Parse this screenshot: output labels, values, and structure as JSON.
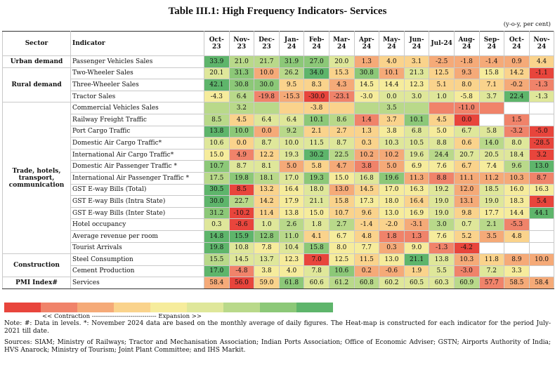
{
  "header": {
    "title": "Table III.1: High Frequency Indicators- Services",
    "unit": "(y-o-y, per cent)"
  },
  "table": {
    "sector_head": "Sector",
    "indicator_head": "Indicator",
    "months": [
      "Oct-23",
      "Nov-23",
      "Dec-23",
      "Jan-24",
      "Feb-24",
      "Mar-24",
      "Apr-24",
      "May-24",
      "Jun-24",
      "Jul-24",
      "Aug-24",
      "Sep-24",
      "Oct-24",
      "Nov-24"
    ],
    "sections": [
      {
        "sector": "Urban demand",
        "rows": [
          {
            "indicator": "Passenger Vehicles Sales",
            "values": [
              "33.9",
              "21.0",
              "21.7",
              "31.9",
              "27.0",
              "20.0",
              "1.3",
              "4.0",
              "3.1",
              "-2.5",
              "-1.8",
              "-1.4",
              "0.9",
              "4.4"
            ]
          }
        ]
      },
      {
        "sector": "Rural demand",
        "rows": [
          {
            "indicator": "Two-Wheeler Sales",
            "values": [
              "20.1",
              "31.3",
              "10.0",
              "26.2",
              "34.0",
              "15.3",
              "30.8",
              "10.1",
              "21.3",
              "12.5",
              "9.3",
              "15.8",
              "14.2",
              "-1.1"
            ]
          },
          {
            "indicator": "Three-Wheeler Sales",
            "values": [
              "42.1",
              "30.8",
              "30.0",
              "9.5",
              "8.3",
              "4.3",
              "14.5",
              "14.4",
              "12.3",
              "5.1",
              "8.0",
              "7.1",
              "-0.2",
              "-1.3"
            ]
          },
          {
            "indicator": "Tractor Sales",
            "values": [
              "-4.3",
              "6.4",
              "-19.8",
              "-15.3",
              "-30.0",
              "-23.1",
              "-3.0",
              "0.0",
              "3.0",
              "1.0",
              "-5.8",
              "3.7",
              "22.4",
              "-1.3"
            ]
          }
        ]
      },
      {
        "sector": "Trade, hotels, transport, communication",
        "rows": [
          {
            "indicator": "Commercial Vehicles Sales",
            "values": [
              null,
              "3.2",
              null,
              null,
              "-3.8",
              null,
              null,
              "3.5",
              null,
              null,
              "-11.0",
              null,
              null,
              null
            ]
          },
          {
            "indicator": "Railway Freight Traffic",
            "values": [
              "8.5",
              "4.5",
              "6.4",
              "6.4",
              "10.1",
              "8.6",
              "1.4",
              "3.7",
              "10.1",
              "4.5",
              "0.0",
              null,
              "1.5",
              null
            ]
          },
          {
            "indicator": "Port Cargo Traffic",
            "values": [
              "13.8",
              "10.0",
              "0.0",
              "9.2",
              "2.1",
              "2.7",
              "1.3",
              "3.8",
              "6.8",
              "5.0",
              "6.7",
              "5.8",
              "-3.2",
              "-5.0"
            ]
          },
          {
            "indicator": "Domestic Air Cargo Traffic*",
            "values": [
              "10.6",
              "0.0",
              "8.7",
              "10.0",
              "11.5",
              "8.7",
              "0.3",
              "10.3",
              "10.5",
              "8.8",
              "0.6",
              "14.0",
              "8.0",
              "-28.5"
            ]
          },
          {
            "indicator": "International Air Cargo Traffic*",
            "values": [
              "15.0",
              "4.9",
              "12.2",
              "19.3",
              "30.2",
              "22.5",
              "10.2",
              "10.2",
              "19.6",
              "24.4",
              "20.7",
              "20.5",
              "18.4",
              "3.2"
            ]
          },
          {
            "indicator": "Domestic Air Passenger Traffic *",
            "values": [
              "10.7",
              "8.7",
              "8.1",
              "5.0",
              "5.8",
              "4.7",
              "3.8",
              "5.0",
              "6.9",
              "7.6",
              "6.7",
              "7.4",
              "9.6",
              "13.0"
            ]
          },
          {
            "indicator": "International Air Passenger Traffic *",
            "values": [
              "17.5",
              "19.8",
              "18.1",
              "17.0",
              "19.3",
              "15.0",
              "16.8",
              "19.6",
              "11.3",
              "8.8",
              "11.1",
              "11.2",
              "10.3",
              "8.7"
            ]
          },
          {
            "indicator": "GST E-way Bills (Total)",
            "values": [
              "30.5",
              "8.5",
              "13.2",
              "16.4",
              "18.0",
              "13.0",
              "14.5",
              "17.0",
              "16.3",
              "19.2",
              "12.0",
              "18.5",
              "16.0",
              "16.3"
            ]
          },
          {
            "indicator": "GST E-way Bills (Intra State)",
            "values": [
              "30.0",
              "22.7",
              "14.2",
              "17.9",
              "21.1",
              "15.8",
              "17.3",
              "18.0",
              "16.4",
              "19.0",
              "13.1",
              "19.0",
              "18.3",
              "5.4"
            ]
          },
          {
            "indicator": "GST E-way Bills (Inter State)",
            "values": [
              "31.2",
              "-10.2",
              "11.4",
              "13.8",
              "15.0",
              "10.7",
              "9.6",
              "13.0",
              "16.9",
              "19.0",
              "9.8",
              "17.7",
              "14.4",
              "44.1"
            ]
          },
          {
            "indicator": "Hotel occupancy",
            "values": [
              "0.3",
              "-8.6",
              "1.0",
              "2.6",
              "1.8",
              "2.7",
              "-1.4",
              "-2.0",
              "-3.1",
              "3.0",
              "0.7",
              "2.1",
              "-5.3",
              null
            ]
          },
          {
            "indicator": "Average revenue per room",
            "values": [
              "14.8",
              "15.9",
              "12.8",
              "11.0",
              "4.1",
              "6.7",
              "4.8",
              "1.8",
              "1.3",
              "7.6",
              "5.2",
              "3.5",
              "4.8",
              null
            ]
          },
          {
            "indicator": "Tourist Arrivals",
            "values": [
              "19.8",
              "10.8",
              "7.8",
              "10.4",
              "15.8",
              "8.0",
              "7.7",
              "0.3",
              "9.0",
              "-1.3",
              "-4.2",
              null,
              null,
              null
            ]
          }
        ]
      },
      {
        "sector": "Construction",
        "rows": [
          {
            "indicator": "Steel Consumption",
            "values": [
              "15.5",
              "14.5",
              "13.7",
              "12.3",
              "7.0",
              "12.5",
              "11.5",
              "13.0",
              "21.1",
              "13.8",
              "10.3",
              "11.8",
              "8.9",
              "10.0"
            ]
          },
          {
            "indicator": "Cement Production",
            "values": [
              "17.0",
              "-4.8",
              "3.8",
              "4.0",
              "7.8",
              "10.6",
              "0.2",
              "-0.6",
              "1.9",
              "5.5",
              "-3.0",
              "7.2",
              "3.3",
              null
            ]
          }
        ]
      },
      {
        "sector": "PMI Index#",
        "rows": [
          {
            "indicator": "Services",
            "values": [
              "58.4",
              "56.0",
              "59.0",
              "61.8",
              "60.6",
              "61.2",
              "60.8",
              "60.2",
              "60.5",
              "60.3",
              "60.9",
              "57.7",
              "58.5",
              "58.4"
            ]
          }
        ]
      }
    ]
  },
  "legend": {
    "label": "<< Contraction -------------------------------- Expansion >>"
  },
  "notes": {
    "note": "Note: #: Data in levels. *: November 2024 data are based on the monthly average of daily figures. The Heat-map is constructed for each indicator for the period July-2021 till date.",
    "sources": "Sources: SIAM; Ministry of Railways; Tractor and Mechanisation Association; Indian Ports Association; Office of Economic Adviser; GSTN; Airports Authority of India; HVS Anarock; Ministry of Tourism; Joint Plant Committee; and IHS Markit."
  }
}
